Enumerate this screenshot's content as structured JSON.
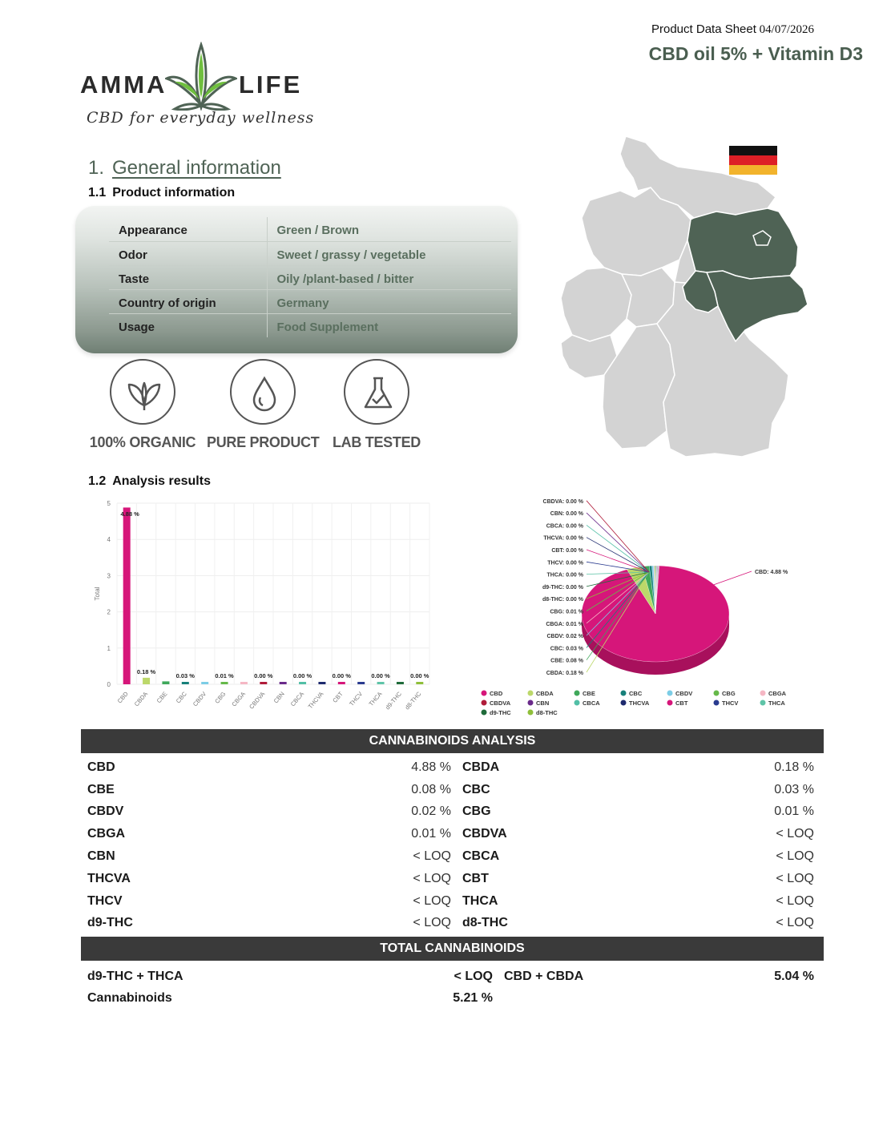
{
  "header": {
    "sheet_label": "Product Data Sheet",
    "sheet_date": "04/07/2026",
    "product_title": "CBD oil 5% + Vitamin D3"
  },
  "logo": {
    "brand_left": "AMMA",
    "brand_right": "LIFE",
    "tagline": "CBD for everyday wellness"
  },
  "section1": {
    "number": "1.",
    "title": "General information"
  },
  "section11": {
    "number": "1.1",
    "title": "Product information"
  },
  "product_info": [
    {
      "key": "Appearance",
      "value": "Green / Brown"
    },
    {
      "key": "Odor",
      "value": "Sweet / grassy / vegetable"
    },
    {
      "key": "Taste",
      "value": "Oily /plant-based / bitter"
    },
    {
      "key": "Country of origin",
      "value": "Germany"
    },
    {
      "key": "Usage",
      "value": "Food Supplement"
    }
  ],
  "badges": [
    {
      "label": "100% ORGANIC",
      "icon": "leaf-icon"
    },
    {
      "label": "PURE PRODUCT",
      "icon": "drop-icon"
    },
    {
      "label": "LAB TESTED",
      "icon": "flask-icon"
    }
  ],
  "map": {
    "icon": "germany-map-icon",
    "highlight_color": "#4f6355",
    "flag": [
      "#111111",
      "#dd1f26",
      "#f2b32c"
    ]
  },
  "section12": {
    "number": "1.2",
    "title": "Analysis results"
  },
  "chart_data": [
    {
      "type": "bar",
      "categories": [
        "CBD",
        "CBDA",
        "CBE",
        "CBC",
        "CBDV",
        "CBG",
        "CBGA",
        "CBDVA",
        "CBN",
        "CBCA",
        "THCVA",
        "CBT",
        "THCV",
        "THCA",
        "d9-THC",
        "d8-THC"
      ],
      "values": [
        4.88,
        0.18,
        0.08,
        0.03,
        0.02,
        0.01,
        0.01,
        0,
        0,
        0,
        0,
        0,
        0,
        0,
        0,
        0
      ],
      "colors": [
        "#d6167a",
        "#bcd86a",
        "#3fa85a",
        "#17807a",
        "#7ccde6",
        "#66b94a",
        "#f5b7c4",
        "#b01c3a",
        "#6a2a8a",
        "#52bfa6",
        "#1e2a6e",
        "#d6167a",
        "#2a3b8f",
        "#5fc4a8",
        "#1f6b3a",
        "#8fbf3a"
      ],
      "data_labels": [
        {
          "index": 0,
          "text": "4.88 %"
        },
        {
          "index": 1,
          "text": "0.18 %"
        },
        {
          "index": 3,
          "text": "0.03 %"
        },
        {
          "index": 5,
          "text": "0.01 %"
        },
        {
          "index": 7,
          "text": "0.00 %"
        },
        {
          "index": 9,
          "text": "0.00 %"
        },
        {
          "index": 11,
          "text": "0.00 %"
        },
        {
          "index": 13,
          "text": "0.00 %"
        },
        {
          "index": 15,
          "text": "0.00 %"
        }
      ],
      "ylabel": "Total",
      "ylim": [
        0,
        5
      ],
      "yticks": [
        "0",
        "1",
        "2",
        "3",
        "4",
        "5"
      ],
      "grid": true
    },
    {
      "type": "pie",
      "slices": [
        {
          "label": "CBD: 4.88 %",
          "value": 4.88,
          "color": "#d6167a"
        },
        {
          "label": "CBDA: 0.18 %",
          "value": 0.18,
          "color": "#bcd86a"
        },
        {
          "label": "CBE: 0.08 %",
          "value": 0.08,
          "color": "#3fa85a"
        },
        {
          "label": "CBC: 0.03 %",
          "value": 0.03,
          "color": "#17807a"
        },
        {
          "label": "CBDV: 0.02 %",
          "value": 0.02,
          "color": "#7ccde6"
        },
        {
          "label": "CBGA: 0.01 %",
          "value": 0.01,
          "color": "#f5b7c4"
        },
        {
          "label": "CBG: 0.01 %",
          "value": 0.01,
          "color": "#66b94a"
        },
        {
          "label": "d8-THC: 0.00 %",
          "value": 0,
          "color": "#8fbf3a"
        },
        {
          "label": "d9-THC: 0.00 %",
          "value": 0,
          "color": "#1f6b3a"
        },
        {
          "label": "THCA: 0.00 %",
          "value": 0,
          "color": "#5fc4a8"
        },
        {
          "label": "THCV: 0.00 %",
          "value": 0,
          "color": "#2a3b8f"
        },
        {
          "label": "CBT: 0.00 %",
          "value": 0,
          "color": "#d6167a"
        },
        {
          "label": "THCVA: 0.00 %",
          "value": 0,
          "color": "#1e2a6e"
        },
        {
          "label": "CBCA: 0.00 %",
          "value": 0,
          "color": "#52bfa6"
        },
        {
          "label": "CBN: 0.00 %",
          "value": 0,
          "color": "#6a2a8a"
        },
        {
          "label": "CBDVA: 0.00 %",
          "value": 0,
          "color": "#b01c3a"
        }
      ],
      "legend": [
        {
          "name": "CBD",
          "color": "#d6167a"
        },
        {
          "name": "CBDA",
          "color": "#bcd86a"
        },
        {
          "name": "CBE",
          "color": "#3fa85a"
        },
        {
          "name": "CBC",
          "color": "#17807a"
        },
        {
          "name": "CBDV",
          "color": "#7ccde6"
        },
        {
          "name": "CBG",
          "color": "#66b94a"
        },
        {
          "name": "CBGA",
          "color": "#f5b7c4"
        },
        {
          "name": "CBDVA",
          "color": "#b01c3a"
        },
        {
          "name": "CBN",
          "color": "#6a2a8a"
        },
        {
          "name": "CBCA",
          "color": "#52bfa6"
        },
        {
          "name": "THCVA",
          "color": "#1e2a6e"
        },
        {
          "name": "CBT",
          "color": "#d6167a"
        },
        {
          "name": "THCV",
          "color": "#2a3b8f"
        },
        {
          "name": "THCA",
          "color": "#5fc4a8"
        },
        {
          "name": "d9-THC",
          "color": "#1f6b3a"
        },
        {
          "name": "d8-THC",
          "color": "#8fbf3a"
        }
      ],
      "legend_position": "bottom"
    }
  ],
  "cannabinoids_analysis": {
    "title": "CANNABINOIDS ANALYSIS",
    "rows": [
      {
        "n1": "CBD",
        "v1": "4.88 %",
        "n2": "CBDA",
        "v2": "0.18 %"
      },
      {
        "n1": "CBE",
        "v1": "0.08 %",
        "n2": "CBC",
        "v2": "0.03 %"
      },
      {
        "n1": "CBDV",
        "v1": "0.02 %",
        "n2": "CBG",
        "v2": "0.01 %"
      },
      {
        "n1": "CBGA",
        "v1": "0.01 %",
        "n2": "CBDVA",
        "v2": "< LOQ"
      },
      {
        "n1": "CBN",
        "v1": "< LOQ",
        "n2": "CBCA",
        "v2": "< LOQ"
      },
      {
        "n1": "THCVA",
        "v1": "< LOQ",
        "n2": "CBT",
        "v2": "< LOQ"
      },
      {
        "n1": "THCV",
        "v1": "< LOQ",
        "n2": "THCA",
        "v2": "< LOQ"
      },
      {
        "n1": "d9-THC",
        "v1": "< LOQ",
        "n2": "d8-THC",
        "v2": "< LOQ"
      }
    ]
  },
  "total_cannabinoids": {
    "title": "TOTAL CANNABINOIDS",
    "rows": [
      {
        "n1": "d9-THC + THCA",
        "v1": "< LOQ",
        "n2": "CBD + CBDA",
        "v2": "5.04 %"
      },
      {
        "n1": "Cannabinoids",
        "v1": "5.21 %",
        "n2": "",
        "v2": ""
      }
    ]
  }
}
